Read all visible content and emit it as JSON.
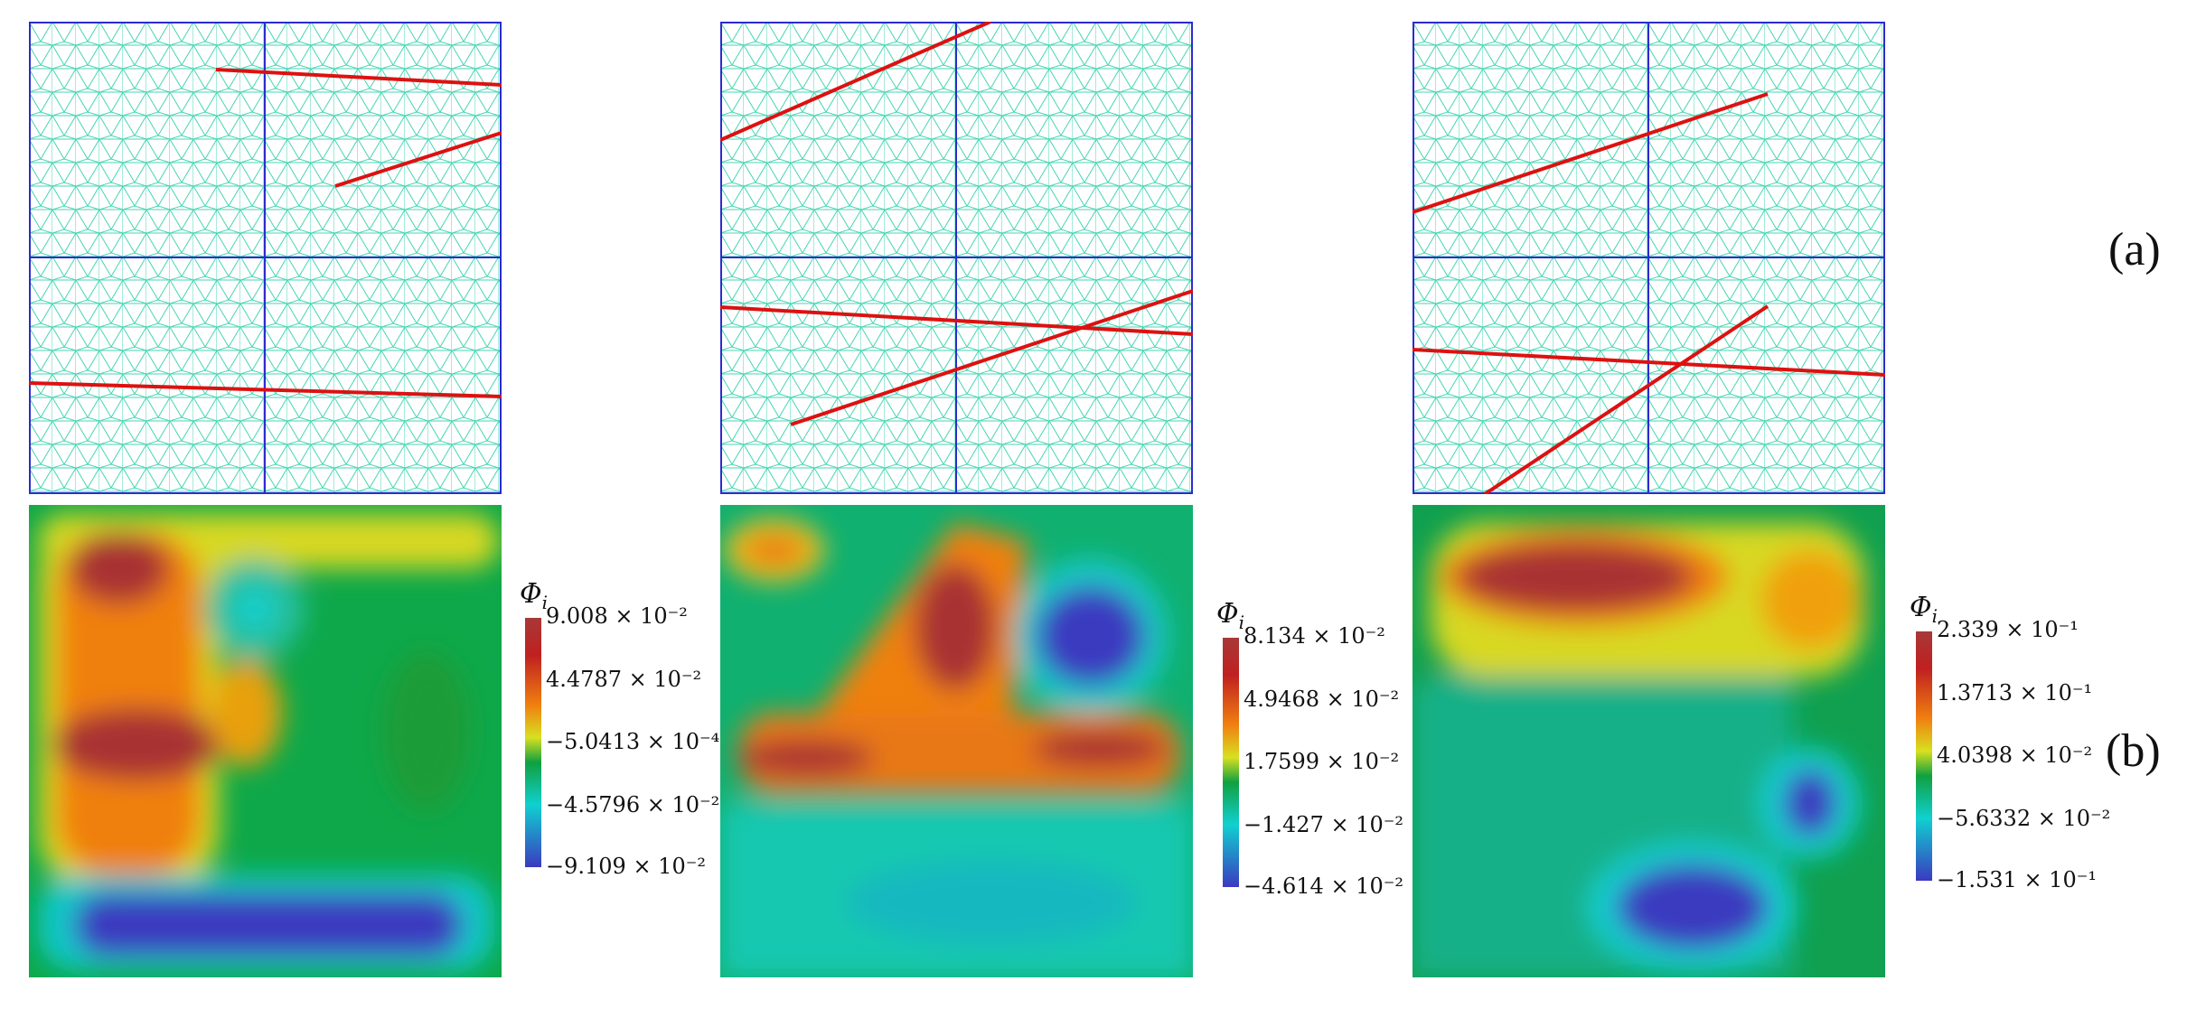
{
  "figure": {
    "row_labels": {
      "a": "(a)",
      "b": "(b)"
    },
    "panels": [
      {
        "id": "left",
        "colorbar": {
          "title": "Φ",
          "subscript": "i",
          "labels": [
            "9.008 × 10⁻²",
            "4.4787 × 10⁻²",
            "−5.0413 × 10⁻⁴",
            "−4.5796 × 10⁻²",
            "−9.109 × 10⁻²"
          ]
        }
      },
      {
        "id": "middle",
        "colorbar": {
          "title": "Φ",
          "subscript": "i",
          "labels": [
            "8.134 × 10⁻²",
            "4.9468 × 10⁻²",
            "1.7599 × 10⁻²",
            "−1.427 × 10⁻²",
            "−4.614 × 10⁻²"
          ]
        }
      },
      {
        "id": "right",
        "colorbar": {
          "title": "Φ",
          "subscript": "i",
          "labels": [
            "2.339 × 10⁻¹",
            "1.3713 × 10⁻¹",
            "4.0398 × 10⁻²",
            "−5.6332 × 10⁻²",
            "−1.531 × 10⁻¹"
          ]
        }
      }
    ],
    "colors": {
      "mesh": "#48d6b4",
      "grid": "#2b2bd0",
      "crack": "#dd1111",
      "cmap": [
        "#3a3ac0",
        "#10d0d0",
        "#10a040",
        "#d8e020",
        "#f08010",
        "#c02020",
        "#a83838"
      ]
    }
  }
}
